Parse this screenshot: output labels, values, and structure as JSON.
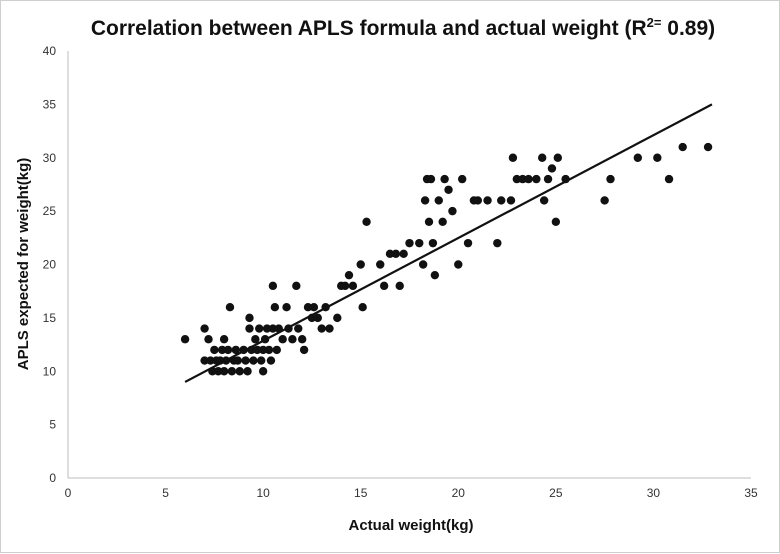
{
  "chart_data": {
    "type": "scatter",
    "title": "Correlation between APLS formula and actual weight (R",
    "title_superscript": "2=",
    "title_suffix": " 0.89)",
    "xlabel": "Actual weight(kg)",
    "ylabel": "APLS expected for weight(kg)",
    "xlim": [
      0,
      35
    ],
    "ylim": [
      0,
      40
    ],
    "x_ticks": [
      0,
      5,
      10,
      15,
      20,
      25,
      30,
      35
    ],
    "y_ticks": [
      0,
      5,
      10,
      15,
      20,
      25,
      30,
      35,
      40
    ],
    "grid": false,
    "legend": "none",
    "marker_color": "#111111",
    "trendline": {
      "x": [
        6,
        33
      ],
      "y": [
        9,
        35
      ]
    },
    "points": [
      {
        "x": 6.0,
        "y": 13
      },
      {
        "x": 7.0,
        "y": 14
      },
      {
        "x": 7.0,
        "y": 11
      },
      {
        "x": 7.2,
        "y": 13
      },
      {
        "x": 7.3,
        "y": 11
      },
      {
        "x": 7.4,
        "y": 10
      },
      {
        "x": 7.5,
        "y": 12
      },
      {
        "x": 7.6,
        "y": 11
      },
      {
        "x": 7.7,
        "y": 10
      },
      {
        "x": 7.8,
        "y": 11
      },
      {
        "x": 7.9,
        "y": 12
      },
      {
        "x": 8.0,
        "y": 10
      },
      {
        "x": 8.0,
        "y": 13
      },
      {
        "x": 8.1,
        "y": 11
      },
      {
        "x": 8.2,
        "y": 12
      },
      {
        "x": 8.3,
        "y": 16
      },
      {
        "x": 8.4,
        "y": 10
      },
      {
        "x": 8.5,
        "y": 11
      },
      {
        "x": 8.6,
        "y": 12
      },
      {
        "x": 8.7,
        "y": 11
      },
      {
        "x": 8.8,
        "y": 10
      },
      {
        "x": 9.0,
        "y": 12
      },
      {
        "x": 9.1,
        "y": 11
      },
      {
        "x": 9.2,
        "y": 10
      },
      {
        "x": 9.3,
        "y": 15
      },
      {
        "x": 9.3,
        "y": 14
      },
      {
        "x": 9.4,
        "y": 12
      },
      {
        "x": 9.5,
        "y": 11
      },
      {
        "x": 9.6,
        "y": 13
      },
      {
        "x": 9.7,
        "y": 12
      },
      {
        "x": 9.8,
        "y": 14
      },
      {
        "x": 9.9,
        "y": 11
      },
      {
        "x": 10.0,
        "y": 12
      },
      {
        "x": 10.0,
        "y": 10
      },
      {
        "x": 10.1,
        "y": 13
      },
      {
        "x": 10.2,
        "y": 14
      },
      {
        "x": 10.3,
        "y": 12
      },
      {
        "x": 10.4,
        "y": 11
      },
      {
        "x": 10.5,
        "y": 14
      },
      {
        "x": 10.5,
        "y": 18
      },
      {
        "x": 10.6,
        "y": 16
      },
      {
        "x": 10.7,
        "y": 12
      },
      {
        "x": 10.8,
        "y": 14
      },
      {
        "x": 11.0,
        "y": 13
      },
      {
        "x": 11.2,
        "y": 16
      },
      {
        "x": 11.3,
        "y": 14
      },
      {
        "x": 11.5,
        "y": 13
      },
      {
        "x": 11.7,
        "y": 18
      },
      {
        "x": 11.8,
        "y": 14
      },
      {
        "x": 12.0,
        "y": 13
      },
      {
        "x": 12.1,
        "y": 12
      },
      {
        "x": 12.3,
        "y": 16
      },
      {
        "x": 12.5,
        "y": 15
      },
      {
        "x": 12.6,
        "y": 16
      },
      {
        "x": 12.8,
        "y": 15
      },
      {
        "x": 13.0,
        "y": 14
      },
      {
        "x": 13.2,
        "y": 16
      },
      {
        "x": 13.4,
        "y": 14
      },
      {
        "x": 13.8,
        "y": 15
      },
      {
        "x": 14.0,
        "y": 18
      },
      {
        "x": 14.2,
        "y": 18
      },
      {
        "x": 14.4,
        "y": 19
      },
      {
        "x": 14.6,
        "y": 18
      },
      {
        "x": 15.0,
        "y": 20
      },
      {
        "x": 15.1,
        "y": 16
      },
      {
        "x": 15.3,
        "y": 24
      },
      {
        "x": 16.0,
        "y": 20
      },
      {
        "x": 16.2,
        "y": 18
      },
      {
        "x": 16.5,
        "y": 21
      },
      {
        "x": 16.8,
        "y": 21
      },
      {
        "x": 17.0,
        "y": 18
      },
      {
        "x": 17.2,
        "y": 21
      },
      {
        "x": 17.5,
        "y": 22
      },
      {
        "x": 18.0,
        "y": 22
      },
      {
        "x": 18.2,
        "y": 20
      },
      {
        "x": 18.3,
        "y": 26
      },
      {
        "x": 18.4,
        "y": 28
      },
      {
        "x": 18.5,
        "y": 24
      },
      {
        "x": 18.6,
        "y": 28
      },
      {
        "x": 18.7,
        "y": 22
      },
      {
        "x": 18.8,
        "y": 19
      },
      {
        "x": 19.0,
        "y": 26
      },
      {
        "x": 19.2,
        "y": 24
      },
      {
        "x": 19.3,
        "y": 28
      },
      {
        "x": 19.5,
        "y": 27
      },
      {
        "x": 19.7,
        "y": 25
      },
      {
        "x": 20.0,
        "y": 20
      },
      {
        "x": 20.2,
        "y": 28
      },
      {
        "x": 20.5,
        "y": 22
      },
      {
        "x": 20.8,
        "y": 26
      },
      {
        "x": 21.0,
        "y": 26
      },
      {
        "x": 21.5,
        "y": 26
      },
      {
        "x": 22.0,
        "y": 22
      },
      {
        "x": 22.2,
        "y": 26
      },
      {
        "x": 22.7,
        "y": 26
      },
      {
        "x": 22.8,
        "y": 30
      },
      {
        "x": 23.0,
        "y": 28
      },
      {
        "x": 23.3,
        "y": 28
      },
      {
        "x": 23.6,
        "y": 28
      },
      {
        "x": 24.0,
        "y": 28
      },
      {
        "x": 24.3,
        "y": 30
      },
      {
        "x": 24.4,
        "y": 26
      },
      {
        "x": 24.6,
        "y": 28
      },
      {
        "x": 24.8,
        "y": 29
      },
      {
        "x": 25.0,
        "y": 24
      },
      {
        "x": 25.1,
        "y": 30
      },
      {
        "x": 25.5,
        "y": 28
      },
      {
        "x": 27.5,
        "y": 26
      },
      {
        "x": 27.8,
        "y": 28
      },
      {
        "x": 29.2,
        "y": 30
      },
      {
        "x": 30.2,
        "y": 30
      },
      {
        "x": 30.8,
        "y": 28
      },
      {
        "x": 31.5,
        "y": 31
      },
      {
        "x": 32.8,
        "y": 31
      }
    ]
  }
}
